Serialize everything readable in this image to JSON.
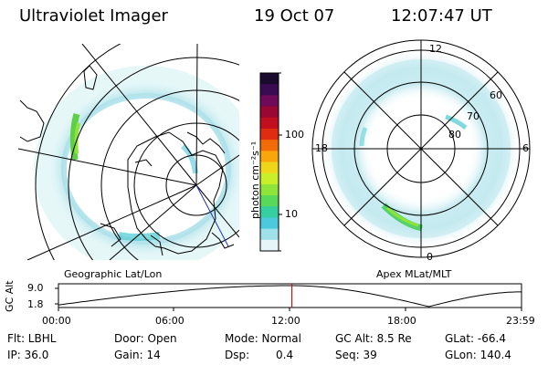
{
  "header": {
    "instrument": "Ultraviolet Imager",
    "date": "19 Oct 07",
    "time": "12:07:47 UT"
  },
  "left_panel": {
    "label": "Geographic Lat/Lon"
  },
  "right_panel": {
    "label": "Apex MLat/MLT",
    "mlt_labels": [
      "12",
      "18",
      "6",
      "0"
    ],
    "lat_labels": [
      "60",
      "70",
      "80"
    ]
  },
  "colorbar": {
    "unit_label": "photon cm⁻²s⁻¹",
    "ticks": [
      "100",
      "10"
    ],
    "colors": [
      "#1a0a2e",
      "#3a0b52",
      "#6e0a57",
      "#9a0734",
      "#c20f1f",
      "#e02d12",
      "#f36a08",
      "#f9a50c",
      "#f0d61a",
      "#c9ef2a",
      "#8fe43a",
      "#58d95a",
      "#36cfa0",
      "#4cc9dd",
      "#9fe0ea",
      "#e6f5f7"
    ]
  },
  "altitude": {
    "axis_label": "GC Alt",
    "y_ticks": [
      "9.0",
      "1.8"
    ],
    "x_ticks": [
      "00:00",
      "06:00",
      "12:00",
      "18:00",
      "23:59"
    ],
    "marker_color": "#d01010",
    "marker_time_hours": 12.1
  },
  "status": {
    "filter": "Flt: LBHL",
    "door": "Door: Open",
    "mode": "Mode: Normal",
    "gc_alt": "GC Alt: 8.5 Re",
    "glat": "GLat: -66.4",
    "ip": "IP: 36.0",
    "gain": "Gain: 14",
    "dsp_label": "Dsp:",
    "dsp_value": "0.4",
    "seq": "Seq: 39",
    "glon": "GLon: 140.4"
  },
  "aurora_color": "#40c8d8"
}
